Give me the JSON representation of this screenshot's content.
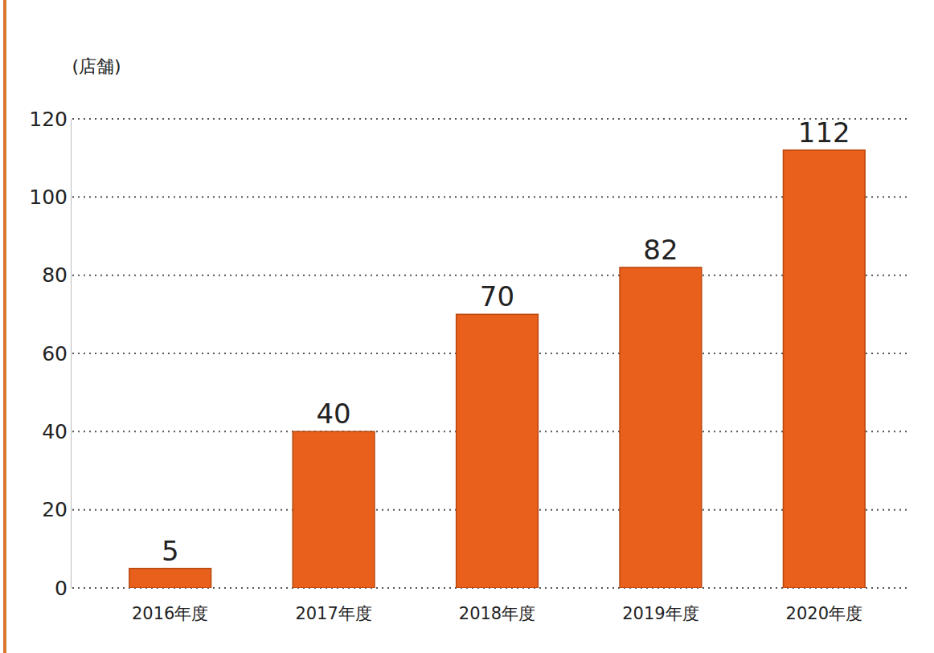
{
  "chart_data": {
    "type": "bar",
    "y_label": "(店舗)",
    "categories": [
      "2016年度",
      "2017年度",
      "2018年度",
      "2019年度",
      "2020年度"
    ],
    "values": [
      5,
      40,
      70,
      82,
      112
    ],
    "color": "#e8601c",
    "ylim": [
      0,
      120
    ],
    "yticks": [
      0,
      20,
      40,
      60,
      80,
      100,
      120
    ],
    "grid": true,
    "data_labels": true
  }
}
